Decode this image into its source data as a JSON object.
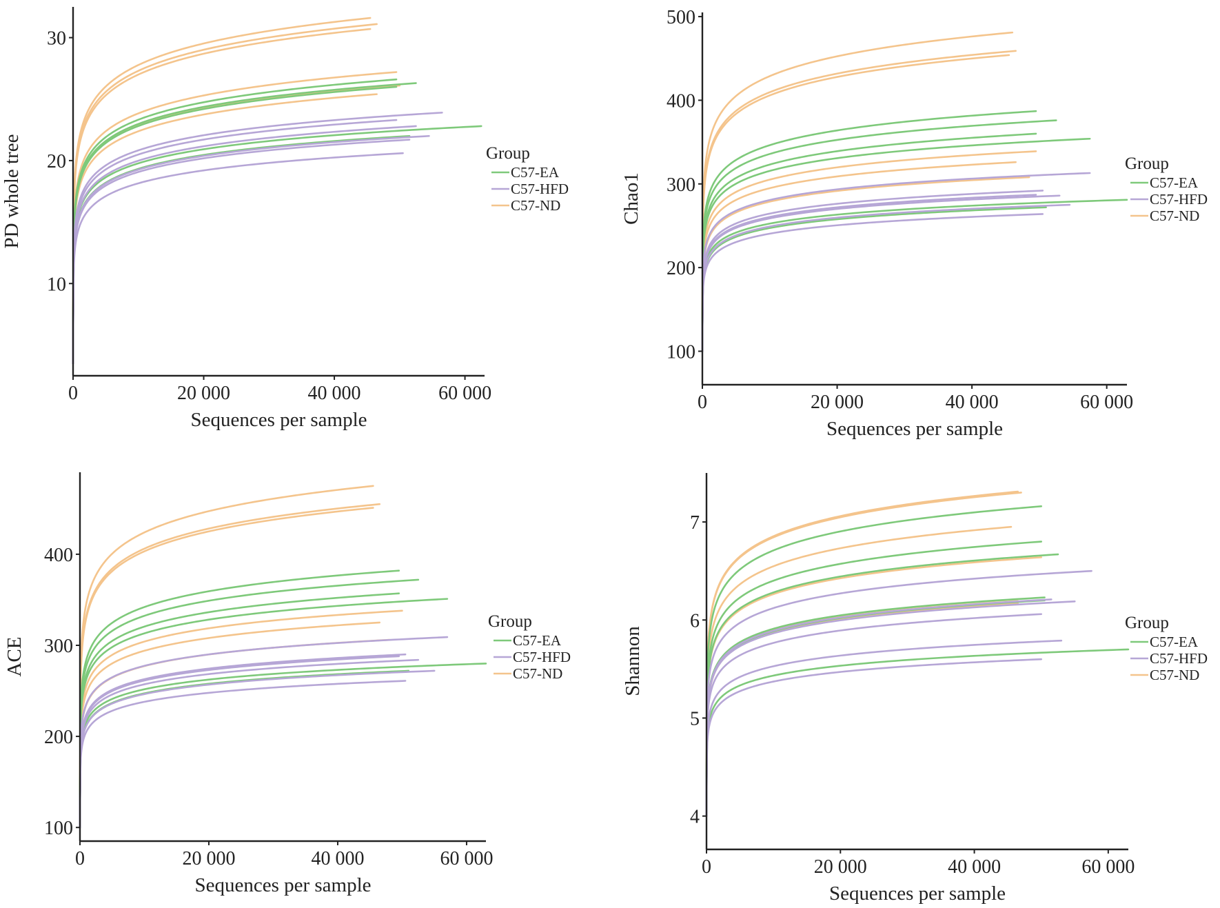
{
  "figure": {
    "legend_title": "Group",
    "groups": [
      {
        "name": "C57-EA",
        "color": "#7ec97a"
      },
      {
        "name": "C57-HFD",
        "color": "#b6a6d6"
      },
      {
        "name": "C57-ND",
        "color": "#f4c48c"
      }
    ]
  },
  "chart_data": [
    {
      "id": "pd",
      "type": "line",
      "title": "",
      "xlabel": "Sequences per sample",
      "ylabel": "PD whole tree",
      "xlim": [
        0,
        63000
      ],
      "ylim": [
        2.5,
        32.5
      ],
      "xticks": [
        0,
        20000,
        40000,
        60000
      ],
      "xtick_labels": [
        "0",
        "20 000",
        "40 000",
        "60 000"
      ],
      "yticks": [
        10,
        20,
        30
      ],
      "ytick_labels": [
        "10",
        "20",
        "30"
      ],
      "y0": 3.5,
      "legend": {
        "title": "Group",
        "position": "right"
      },
      "series": [
        {
          "group": "C57-ND",
          "xend": 45500,
          "yend": 31.6
        },
        {
          "group": "C57-ND",
          "xend": 46500,
          "yend": 31.1
        },
        {
          "group": "C57-ND",
          "xend": 45500,
          "yend": 30.7
        },
        {
          "group": "C57-ND",
          "xend": 49500,
          "yend": 27.2
        },
        {
          "group": "C57-ND",
          "xend": 50000,
          "yend": 26.1
        },
        {
          "group": "C57-ND",
          "xend": 46500,
          "yend": 25.4
        },
        {
          "group": "C57-EA",
          "xend": 49500,
          "yend": 26.6
        },
        {
          "group": "C57-EA",
          "xend": 52500,
          "yend": 26.3
        },
        {
          "group": "C57-EA",
          "xend": 49500,
          "yend": 26.0
        },
        {
          "group": "C57-EA",
          "xend": 62500,
          "yend": 22.8
        },
        {
          "group": "C57-EA",
          "xend": 51500,
          "yend": 22.0
        },
        {
          "group": "C57-HFD",
          "xend": 56500,
          "yend": 23.9
        },
        {
          "group": "C57-HFD",
          "xend": 49500,
          "yend": 23.3
        },
        {
          "group": "C57-HFD",
          "xend": 52500,
          "yend": 22.8
        },
        {
          "group": "C57-HFD",
          "xend": 54500,
          "yend": 22.0
        },
        {
          "group": "C57-HFD",
          "xend": 51500,
          "yend": 21.7
        },
        {
          "group": "C57-HFD",
          "xend": 50500,
          "yend": 20.6
        }
      ]
    },
    {
      "id": "chao1",
      "type": "line",
      "title": "",
      "xlabel": "Sequences per sample",
      "ylabel": "Chao1",
      "xlim": [
        0,
        63000
      ],
      "ylim": [
        60,
        505
      ],
      "xticks": [
        0,
        20000,
        40000,
        60000
      ],
      "xtick_labels": [
        "0",
        "20 000",
        "40 000",
        "60 000"
      ],
      "yticks": [
        100,
        200,
        300,
        400,
        500
      ],
      "ytick_labels": [
        "100",
        "200",
        "300",
        "400",
        "500"
      ],
      "y0": 100,
      "legend": {
        "title": "Group",
        "position": "right"
      },
      "series": [
        {
          "group": "C57-ND",
          "xend": 46000,
          "yend": 481
        },
        {
          "group": "C57-ND",
          "xend": 46500,
          "yend": 459
        },
        {
          "group": "C57-ND",
          "xend": 45500,
          "yend": 454
        },
        {
          "group": "C57-ND",
          "xend": 49500,
          "yend": 339
        },
        {
          "group": "C57-ND",
          "xend": 46500,
          "yend": 326
        },
        {
          "group": "C57-ND",
          "xend": 48500,
          "yend": 308
        },
        {
          "group": "C57-EA",
          "xend": 49500,
          "yend": 387
        },
        {
          "group": "C57-EA",
          "xend": 52500,
          "yend": 376
        },
        {
          "group": "C57-EA",
          "xend": 49500,
          "yend": 360
        },
        {
          "group": "C57-EA",
          "xend": 57500,
          "yend": 354
        },
        {
          "group": "C57-EA",
          "xend": 63000,
          "yend": 281
        },
        {
          "group": "C57-EA",
          "xend": 51000,
          "yend": 272
        },
        {
          "group": "C57-HFD",
          "xend": 57500,
          "yend": 313
        },
        {
          "group": "C57-HFD",
          "xend": 50500,
          "yend": 292
        },
        {
          "group": "C57-HFD",
          "xend": 53000,
          "yend": 286
        },
        {
          "group": "C57-HFD",
          "xend": 49500,
          "yend": 287
        },
        {
          "group": "C57-HFD",
          "xend": 54500,
          "yend": 275
        },
        {
          "group": "C57-HFD",
          "xend": 50500,
          "yend": 264
        }
      ]
    },
    {
      "id": "ace",
      "type": "line",
      "title": "",
      "xlabel": "Sequences per sample",
      "ylabel": "ACE",
      "xlim": [
        0,
        63000
      ],
      "ylim": [
        85,
        490
      ],
      "xticks": [
        0,
        20000,
        40000,
        60000
      ],
      "xtick_labels": [
        "0",
        "20 000",
        "40 000",
        "60 000"
      ],
      "yticks": [
        100,
        200,
        300,
        400
      ],
      "ytick_labels": [
        "100",
        "200",
        "300",
        "400"
      ],
      "y0": 100,
      "legend": {
        "title": "Group",
        "position": "right"
      },
      "series": [
        {
          "group": "C57-ND",
          "xend": 45500,
          "yend": 475
        },
        {
          "group": "C57-ND",
          "xend": 46500,
          "yend": 455
        },
        {
          "group": "C57-ND",
          "xend": 45500,
          "yend": 451
        },
        {
          "group": "C57-ND",
          "xend": 50000,
          "yend": 338
        },
        {
          "group": "C57-ND",
          "xend": 46500,
          "yend": 325
        },
        {
          "group": "C57-ND",
          "xend": 48000,
          "yend": 306
        },
        {
          "group": "C57-EA",
          "xend": 49500,
          "yend": 382
        },
        {
          "group": "C57-EA",
          "xend": 52500,
          "yend": 372
        },
        {
          "group": "C57-EA",
          "xend": 49500,
          "yend": 357
        },
        {
          "group": "C57-EA",
          "xend": 57000,
          "yend": 351
        },
        {
          "group": "C57-EA",
          "xend": 63000,
          "yend": 280
        },
        {
          "group": "C57-EA",
          "xend": 51000,
          "yend": 272
        },
        {
          "group": "C57-HFD",
          "xend": 57000,
          "yend": 309
        },
        {
          "group": "C57-HFD",
          "xend": 50500,
          "yend": 290
        },
        {
          "group": "C57-HFD",
          "xend": 52500,
          "yend": 284
        },
        {
          "group": "C57-HFD",
          "xend": 49500,
          "yend": 288
        },
        {
          "group": "C57-HFD",
          "xend": 55000,
          "yend": 272
        },
        {
          "group": "C57-HFD",
          "xend": 50500,
          "yend": 261
        }
      ]
    },
    {
      "id": "shannon",
      "type": "line",
      "title": "",
      "xlabel": "Sequences per sample",
      "ylabel": "Shannon",
      "xlim": [
        0,
        63000
      ],
      "ylim": [
        3.66,
        7.5
      ],
      "xticks": [
        0,
        20000,
        40000,
        60000
      ],
      "xtick_labels": [
        "0",
        "20 000",
        "40 000",
        "60 000"
      ],
      "yticks": [
        4,
        5,
        6,
        7
      ],
      "ytick_labels": [
        "4",
        "5",
        "6",
        "7"
      ],
      "y0": 4.0,
      "legend": {
        "title": "Group",
        "position": "right"
      },
      "series": [
        {
          "group": "C57-ND",
          "xend": 46500,
          "yend": 7.31
        },
        {
          "group": "C57-ND",
          "xend": 47000,
          "yend": 7.3
        },
        {
          "group": "C57-ND",
          "xend": 45500,
          "yend": 6.95
        },
        {
          "group": "C57-ND",
          "xend": 50000,
          "yend": 6.64
        },
        {
          "group": "C57-ND",
          "xend": 46500,
          "yend": 6.21
        },
        {
          "group": "C57-ND",
          "xend": 46500,
          "yend": 6.17
        },
        {
          "group": "C57-EA",
          "xend": 50000,
          "yend": 7.16
        },
        {
          "group": "C57-EA",
          "xend": 50000,
          "yend": 6.8
        },
        {
          "group": "C57-EA",
          "xend": 52500,
          "yend": 6.67
        },
        {
          "group": "C57-EA",
          "xend": 50500,
          "yend": 6.23
        },
        {
          "group": "C57-EA",
          "xend": 63000,
          "yend": 5.7
        },
        {
          "group": "C57-EA",
          "xend": 50500,
          "yend": 6.2
        },
        {
          "group": "C57-HFD",
          "xend": 57500,
          "yend": 6.5
        },
        {
          "group": "C57-HFD",
          "xend": 51500,
          "yend": 6.21
        },
        {
          "group": "C57-HFD",
          "xend": 55000,
          "yend": 6.19
        },
        {
          "group": "C57-HFD",
          "xend": 50000,
          "yend": 6.06
        },
        {
          "group": "C57-HFD",
          "xend": 53000,
          "yend": 5.79
        },
        {
          "group": "C57-HFD",
          "xend": 50000,
          "yend": 5.6
        }
      ]
    }
  ]
}
